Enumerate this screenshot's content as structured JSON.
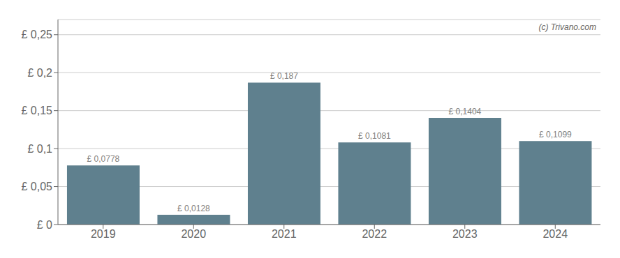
{
  "chart_data": {
    "type": "bar",
    "categories": [
      "2019",
      "2020",
      "2021",
      "2022",
      "2023",
      "2024"
    ],
    "values": [
      0.0778,
      0.0128,
      0.187,
      0.1081,
      0.1404,
      0.1099
    ],
    "value_labels": [
      "£ 0,0778",
      "£ 0,0128",
      "£ 0,187",
      "£ 0,1081",
      "£ 0,1404",
      "£ 0,1099"
    ],
    "color": "#5f808e",
    "ylim": [
      0,
      0.27
    ],
    "yticks": [
      {
        "value": 0,
        "label": "£ 0"
      },
      {
        "value": 0.05,
        "label": "£ 0,05"
      },
      {
        "value": 0.1,
        "label": "£ 0,1"
      },
      {
        "value": 0.15,
        "label": "£ 0,15"
      },
      {
        "value": 0.2,
        "label": "£ 0,2"
      },
      {
        "value": 0.25,
        "label": "£ 0,25"
      }
    ],
    "grid": true,
    "data_labels": true,
    "annotations": [
      "(c) Trivano.com"
    ]
  }
}
